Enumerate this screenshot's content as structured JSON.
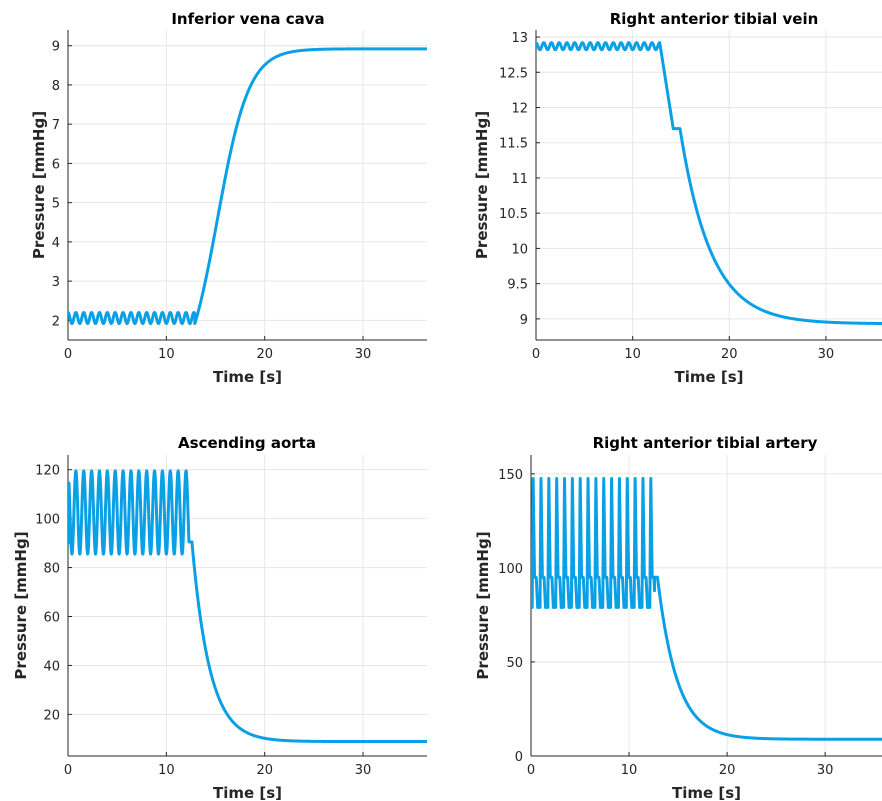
{
  "colors": {
    "series": "#0aa0e6",
    "grid": "#e6e6e6",
    "axis": "#262626"
  },
  "chart_data": [
    {
      "type": "line",
      "title": "Inferior vena cava",
      "xlabel": "Time [s]",
      "ylabel": "Pressure [mmHg]",
      "xlim": [
        0,
        36.5
      ],
      "ylim": [
        1.5,
        9.4
      ],
      "grid": true,
      "xticks": [
        0,
        10,
        20,
        30
      ],
      "yticks": [
        2,
        3,
        4,
        5,
        6,
        7,
        8,
        9
      ],
      "xtick_labels": [
        "0",
        "10",
        "20",
        "30"
      ],
      "ytick_labels": [
        "2",
        "3",
        "4",
        "5",
        "6",
        "7",
        "8",
        "9"
      ],
      "series": [
        {
          "model": "oscillate_then_transition",
          "t_start": 0,
          "t_switch": 12.9,
          "t_end": 36.5,
          "period": 0.8,
          "osc_center": 2.06,
          "osc_amplitude": 0.14,
          "initial_value": 2.2,
          "final_value": 8.92,
          "transition_shape": "sigmoid",
          "transition_midpoint": 15.2,
          "transition_width": 1.6
        }
      ]
    },
    {
      "type": "line",
      "title": "Right anterior tibial vein",
      "xlabel": "Time [s]",
      "ylabel": "Pressure [mmHg]",
      "xlim": [
        0,
        35.8
      ],
      "ylim": [
        8.7,
        13.1
      ],
      "grid": true,
      "xticks": [
        0,
        10,
        20,
        30
      ],
      "yticks": [
        9,
        9.5,
        10,
        10.5,
        11,
        11.5,
        12,
        12.5,
        13
      ],
      "xtick_labels": [
        "0",
        "10",
        "20",
        "30"
      ],
      "ytick_labels": [
        "9",
        "9.5",
        "10",
        "10.5",
        "11",
        "11.5",
        "12",
        "12.5",
        "13"
      ],
      "series": [
        {
          "model": "oscillate_then_transition",
          "t_start": 0,
          "t_switch": 12.8,
          "t_end": 35.8,
          "period": 0.8,
          "osc_center": 12.87,
          "osc_amplitude": 0.05,
          "initial_value": 12.87,
          "final_value": 8.93,
          "transition_shape": "decay_with_plateau",
          "transition_midpoint": 14.3,
          "transition_width": 3.2,
          "plateau_value": 11.7,
          "plateau_start": 14.2,
          "plateau_end": 14.9
        }
      ]
    },
    {
      "type": "line",
      "title": "Ascending aorta",
      "xlabel": "Time [s]",
      "ylabel": "Pressure [mmHg]",
      "xlim": [
        0,
        36.5
      ],
      "ylim": [
        3,
        126
      ],
      "grid": true,
      "xticks": [
        0,
        10,
        20,
        30
      ],
      "yticks": [
        20,
        40,
        60,
        80,
        100,
        120
      ],
      "xtick_labels": [
        "0",
        "10",
        "20",
        "30"
      ],
      "ytick_labels": [
        "20",
        "40",
        "60",
        "80",
        "100",
        "120"
      ],
      "series": [
        {
          "model": "oscillate_then_transition",
          "t_start": 0,
          "t_switch": 12.3,
          "t_end": 36.5,
          "period": 0.8,
          "osc_center": 102.5,
          "osc_amplitude": 17,
          "initial_value": 90,
          "final_value": 8.9,
          "transition_shape": "decay",
          "transition_tau": 1.8,
          "transition_delay": 0.3
        }
      ]
    },
    {
      "type": "line",
      "title": "Right anterior tibial artery",
      "xlabel": "Time [s]",
      "ylabel": "Pressure [mmHg]",
      "xlim": [
        0,
        35.8
      ],
      "ylim": [
        0,
        160
      ],
      "grid": true,
      "xticks": [
        0,
        10,
        20,
        30
      ],
      "yticks": [
        0,
        50,
        100,
        150
      ],
      "xtick_labels": [
        "0",
        "10",
        "20",
        "30"
      ],
      "ytick_labels": [
        "0",
        "50",
        "100",
        "150"
      ],
      "series": [
        {
          "model": "pulsatile_with_notch",
          "t_start": 0,
          "t_switch": 12.6,
          "t_end": 35.8,
          "period": 0.8,
          "peak_value": 149,
          "trough_value": 79,
          "notch_value": 95,
          "initial_value": 90,
          "final_value": 8.9,
          "transition_shape": "decay",
          "transition_tau": 2.0,
          "transition_delay": 0.3
        }
      ]
    }
  ]
}
